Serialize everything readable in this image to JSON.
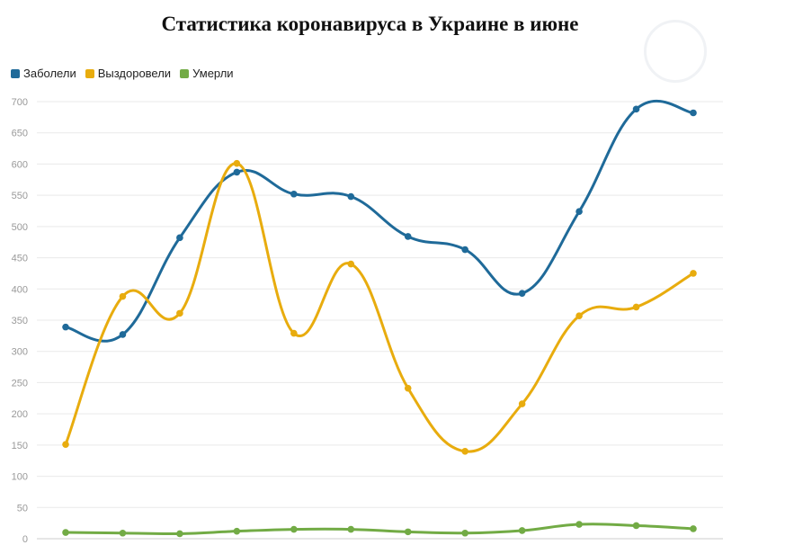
{
  "chart_data": {
    "type": "line",
    "title": "Статистика коронавируса в Украине в июне",
    "xlabel": "",
    "ylabel": "",
    "ylim": [
      0,
      700
    ],
    "yticks": [
      0,
      50,
      100,
      150,
      200,
      250,
      300,
      350,
      400,
      450,
      500,
      550,
      600,
      650,
      700
    ],
    "x": [
      1,
      2,
      3,
      4,
      5,
      6,
      7,
      8,
      9,
      10,
      11,
      12
    ],
    "grid": true,
    "legend_position": "top-left",
    "series": [
      {
        "name": "Заболели",
        "color": "#1f6a99",
        "values": [
          339,
          327,
          482,
          587,
          552,
          548,
          484,
          463,
          393,
          524,
          688,
          682
        ]
      },
      {
        "name": "Выздоровели",
        "color": "#e8ac0e",
        "values": [
          151,
          388,
          361,
          601,
          329,
          440,
          241,
          140,
          216,
          357,
          371,
          425
        ]
      },
      {
        "name": "Умерли",
        "color": "#72ab45",
        "values": [
          10,
          9,
          8,
          12,
          15,
          15,
          11,
          9,
          13,
          23,
          21,
          16
        ]
      }
    ]
  }
}
